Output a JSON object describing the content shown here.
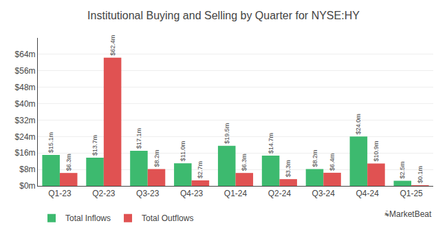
{
  "chart_data": {
    "type": "bar",
    "title": "Institutional Buying and Selling by Quarter for NYSE:HY",
    "categories": [
      "Q1-23",
      "Q2-23",
      "Q3-23",
      "Q4-23",
      "Q1-24",
      "Q2-24",
      "Q3-24",
      "Q4-24",
      "Q1-25"
    ],
    "series": [
      {
        "name": "Total Inflows",
        "color": "#3dba6f",
        "values": [
          15.1,
          13.7,
          17.1,
          11.0,
          19.5,
          14.7,
          8.2,
          24.0,
          2.5
        ],
        "value_labels": [
          "$15.1m",
          "$13.7m",
          "$17.1m",
          "$11.0m",
          "$19.5m",
          "$14.7m",
          "$8.2m",
          "$24.0m",
          "$2.5m"
        ]
      },
      {
        "name": "Total Outflows",
        "color": "#e05252",
        "values": [
          6.3,
          62.4,
          8.2,
          2.7,
          6.3,
          3.3,
          6.4,
          10.9,
          0.1
        ],
        "value_labels": [
          "$6.3m",
          "$62.4m",
          "$8.2m",
          "$2.7m",
          "$6.3m",
          "$3.3m",
          "$6.4m",
          "$10.9m",
          "$0.1m"
        ]
      }
    ],
    "ylim": [
      0,
      72
    ],
    "yticks": [
      {
        "value": 0,
        "label": "$0m"
      },
      {
        "value": 8,
        "label": "$8m"
      },
      {
        "value": 16,
        "label": "$16m"
      },
      {
        "value": 24,
        "label": "$24m"
      },
      {
        "value": 32,
        "label": "$32m"
      },
      {
        "value": 40,
        "label": "$40m"
      },
      {
        "value": 48,
        "label": "$48m"
      },
      {
        "value": 56,
        "label": "$56m"
      },
      {
        "value": 64,
        "label": "$64m"
      }
    ],
    "grid": true,
    "legend": "bottom",
    "data_labels": true,
    "annotations": [
      "⩯MarketBeat"
    ]
  }
}
